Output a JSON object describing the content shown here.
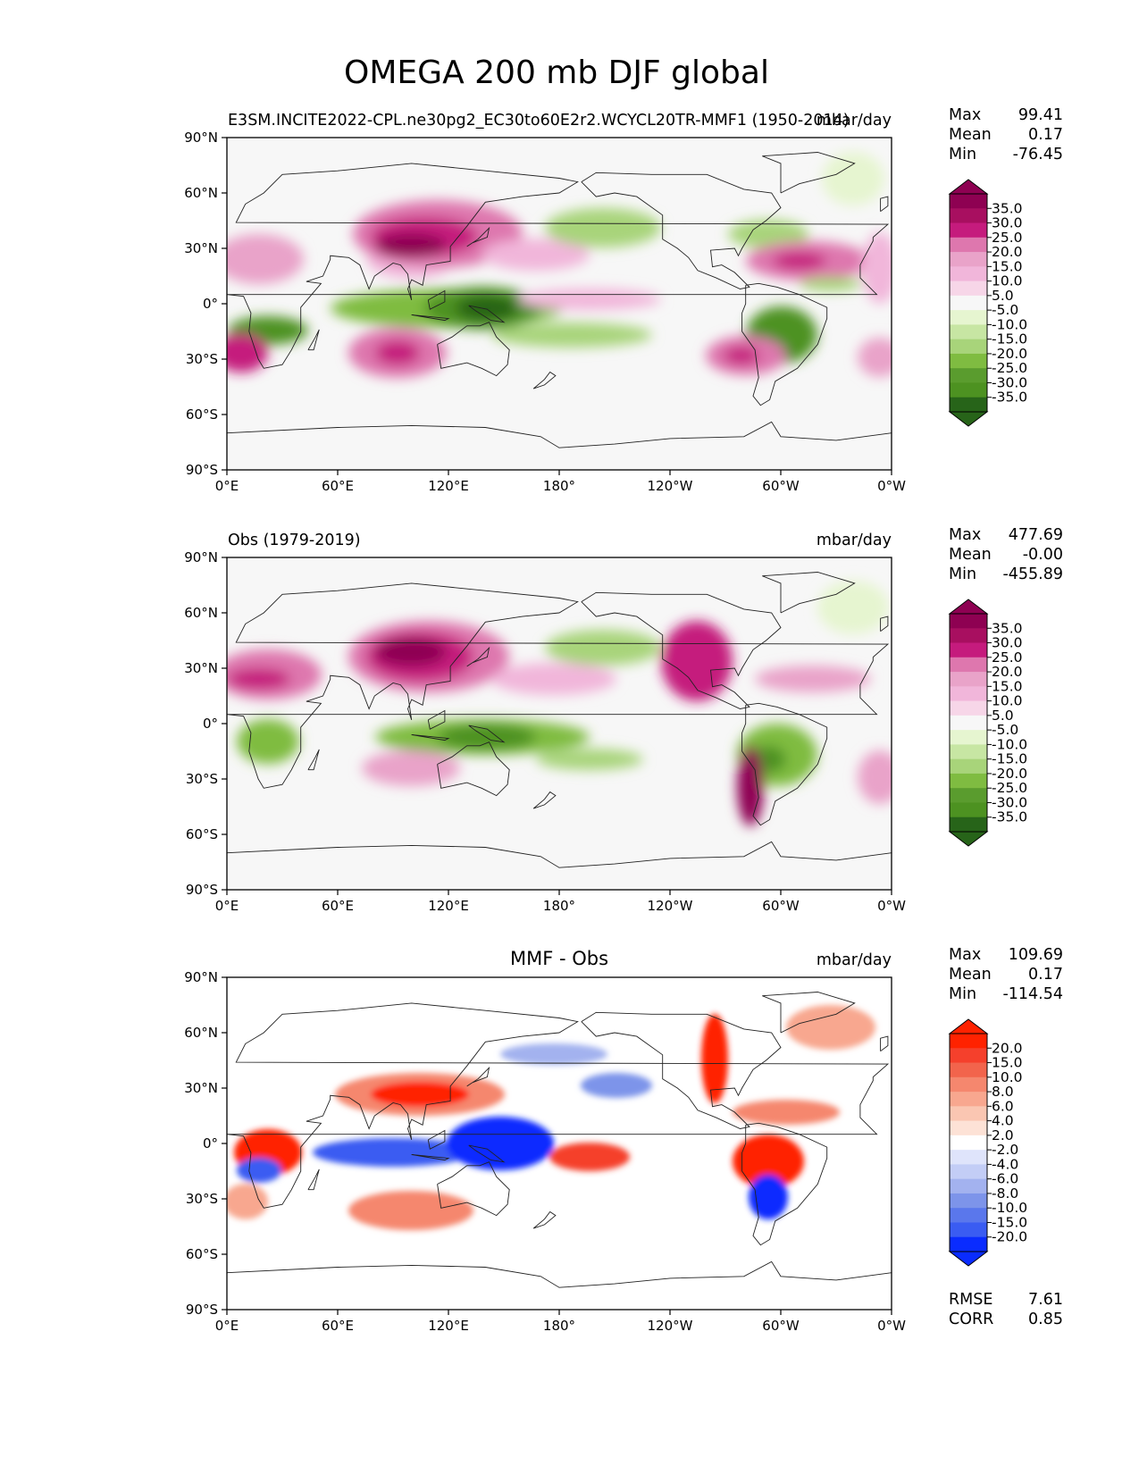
{
  "chart_data": {
    "type": "heatmap",
    "title": "OMEGA 200 mb DJF global",
    "lon_ticks": [
      "0°E",
      "60°E",
      "120°E",
      "180°",
      "120°W",
      "60°W",
      "0°W"
    ],
    "lat_ticks": [
      "90°N",
      "60°N",
      "30°N",
      "0°",
      "30°S",
      "60°S",
      "90°S"
    ],
    "xlim": [
      0,
      360
    ],
    "ylim": [
      -90,
      90
    ],
    "panels": [
      {
        "left_title": "E3SM.INCITE2022-CPL.ne30pg2_EC30to60E2r2.WCYCL20TR-MMF1 (1950-2014)",
        "center_title": "",
        "units": "mbar/day",
        "stats": [
          {
            "label": "Max",
            "value": "99.41"
          },
          {
            "label": "Mean",
            "value": "0.17"
          },
          {
            "label": "Min",
            "value": "-76.45"
          }
        ],
        "colorbar_ticks": [
          "35.0",
          "30.0",
          "25.0",
          "20.0",
          "15.0",
          "10.0",
          "5.0",
          "-5.0",
          "-10.0",
          "-15.0",
          "-20.0",
          "-25.0",
          "-30.0",
          "-35.0"
        ],
        "colorbar_colors": [
          "#8e0152",
          "#a80f60",
          "#c51b7d",
          "#de77ae",
          "#e9a3c9",
          "#f1b6da",
          "#f7d6e8",
          "#f7f7f7",
          "#e6f5d0",
          "#c7e6a3",
          "#a8d47a",
          "#7fbc41",
          "#5a9c2e",
          "#4d9221",
          "#276419"
        ],
        "extend_top": "#8e0152",
        "extend_bottom": "#276419",
        "rmse": null,
        "corr": null
      },
      {
        "left_title": "Obs (1979-2019)",
        "center_title": "",
        "units": "mbar/day",
        "stats": [
          {
            "label": "Max",
            "value": "477.69"
          },
          {
            "label": "Mean",
            "value": "-0.00"
          },
          {
            "label": "Min",
            "value": "-455.89"
          }
        ],
        "colorbar_ticks": [
          "35.0",
          "30.0",
          "25.0",
          "20.0",
          "15.0",
          "10.0",
          "5.0",
          "-5.0",
          "-10.0",
          "-15.0",
          "-20.0",
          "-25.0",
          "-30.0",
          "-35.0"
        ],
        "colorbar_colors": [
          "#8e0152",
          "#a80f60",
          "#c51b7d",
          "#de77ae",
          "#e9a3c9",
          "#f1b6da",
          "#f7d6e8",
          "#f7f7f7",
          "#e6f5d0",
          "#c7e6a3",
          "#a8d47a",
          "#7fbc41",
          "#5a9c2e",
          "#4d9221",
          "#276419"
        ],
        "extend_top": "#8e0152",
        "extend_bottom": "#276419",
        "rmse": null,
        "corr": null
      },
      {
        "left_title": "",
        "center_title": "MMF - Obs",
        "units": "mbar/day",
        "stats": [
          {
            "label": "Max",
            "value": "109.69"
          },
          {
            "label": "Mean",
            "value": "0.17"
          },
          {
            "label": "Min",
            "value": "-114.54"
          }
        ],
        "colorbar_ticks": [
          "20.0",
          "15.0",
          "10.0",
          "8.0",
          "6.0",
          "4.0",
          "2.0",
          "-2.0",
          "-4.0",
          "-6.0",
          "-8.0",
          "-10.0",
          "-15.0",
          "-20.0"
        ],
        "colorbar_colors": [
          "#ff2200",
          "#f5402c",
          "#f2644c",
          "#f5876e",
          "#f8a78f",
          "#fac6b2",
          "#fde2d6",
          "#ffffff",
          "#dfe4fb",
          "#c3cdf6",
          "#a3b2ef",
          "#7d94ea",
          "#5a77ec",
          "#3a5cf2",
          "#0a2cff"
        ],
        "extend_top": "#ff2200",
        "extend_bottom": "#0a2cff",
        "rmse": {
          "label": "RMSE",
          "value": "7.61"
        },
        "corr": {
          "label": "CORR",
          "value": "0.85"
        }
      }
    ]
  }
}
